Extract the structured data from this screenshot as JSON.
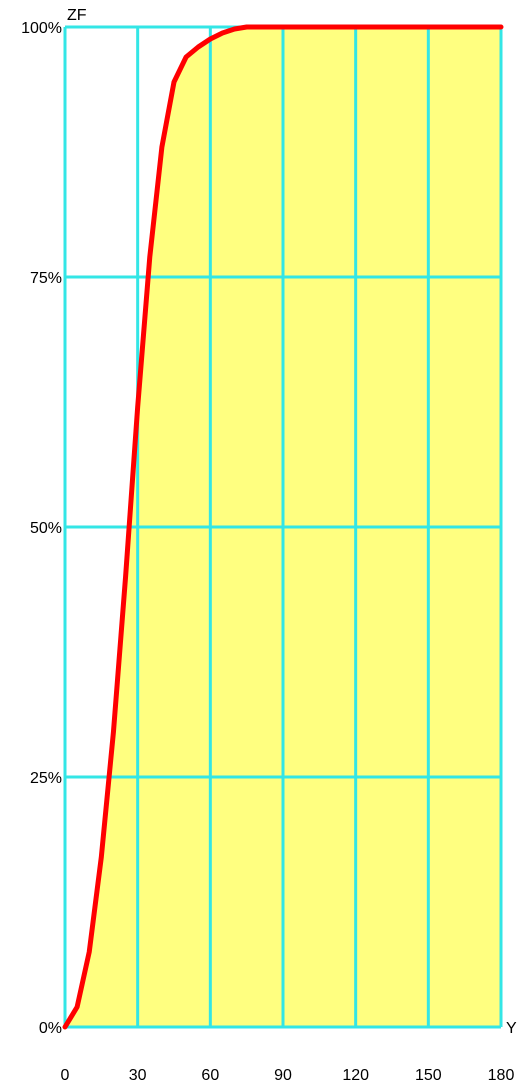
{
  "chart_data": {
    "type": "area",
    "title": "",
    "xlabel": "Y",
    "ylabel": "ZF",
    "xlim": [
      0,
      180
    ],
    "ylim": [
      0,
      100
    ],
    "x_ticks": [
      0,
      30,
      60,
      90,
      120,
      150,
      180
    ],
    "y_ticks": [
      0,
      25,
      50,
      75,
      100
    ],
    "x_tick_labels": [
      "0",
      "30",
      "60",
      "90",
      "120",
      "150",
      "180"
    ],
    "y_tick_labels": [
      "0%",
      "25%",
      "50%",
      "75%",
      "100%"
    ],
    "grid": true,
    "series": [
      {
        "x": [
          0,
          5,
          10,
          15,
          20,
          25,
          30,
          35,
          40,
          45,
          50,
          55,
          60,
          65,
          70,
          75,
          80,
          85,
          90,
          100,
          120,
          150,
          180
        ],
        "y": [
          0,
          2,
          7.5,
          17,
          29.5,
          45,
          62,
          77,
          88,
          94.5,
          97,
          98,
          98.8,
          99.4,
          99.8,
          100,
          100,
          100,
          100,
          100,
          100,
          100,
          100
        ]
      }
    ],
    "colors": {
      "line": "#ff0000",
      "fill": "#ffff80",
      "grid": "#33e6e6",
      "text": "#000000"
    }
  }
}
